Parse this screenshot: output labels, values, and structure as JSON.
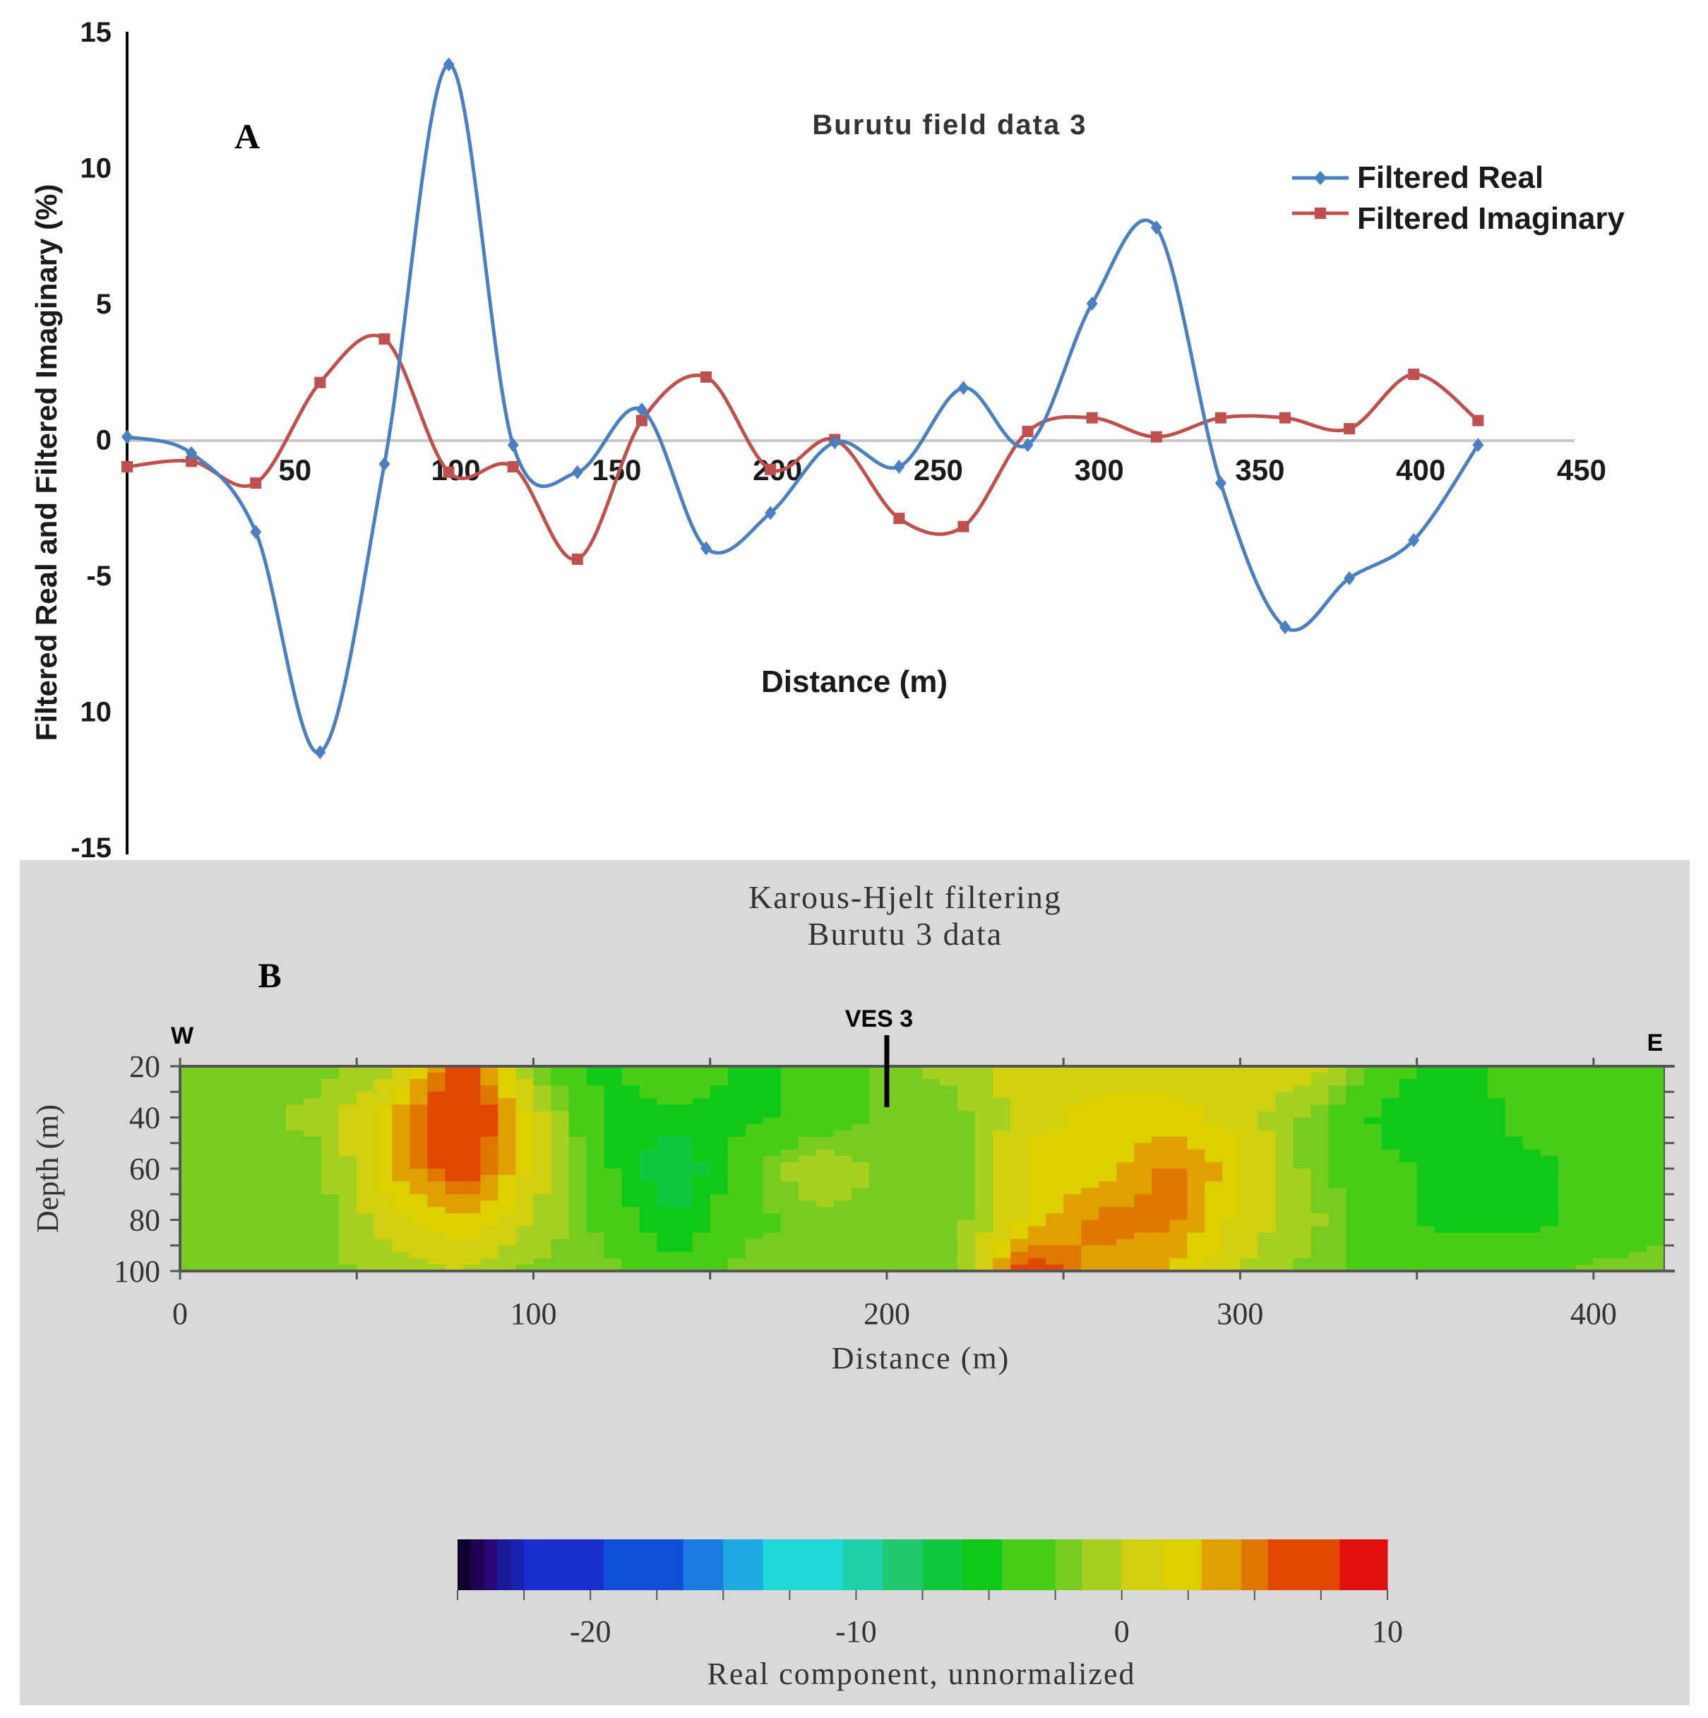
{
  "chart_data": [
    {
      "type": "line",
      "panel_label": "A",
      "title": "Burutu field data 3",
      "xlabel": "Distance (m)",
      "ylabel": "Filtered Real and Filtered Imaginary (%)",
      "xlim": [
        0,
        450
      ],
      "ylim": [
        -15,
        15
      ],
      "x_ticks": [
        "50",
        "100",
        "150",
        "200",
        "250",
        "300",
        "350",
        "400",
        "450"
      ],
      "y_ticks": [
        "15",
        "10",
        "5",
        "0",
        "-5",
        "10",
        "-15"
      ],
      "x": [
        0,
        20,
        40,
        60,
        80,
        100,
        120,
        140,
        160,
        180,
        200,
        220,
        240,
        260,
        280,
        300,
        320,
        340,
        360,
        380,
        400,
        420
      ],
      "series": [
        {
          "name": "Filtered Real",
          "color": "#4a7fc1",
          "marker": "diamond",
          "values": [
            0.1,
            -0.5,
            -3.4,
            -11.5,
            -0.9,
            13.8,
            -0.2,
            -1.2,
            1.1,
            -4.0,
            -2.7,
            -0.1,
            -1.0,
            1.9,
            -0.2,
            5.0,
            7.8,
            -1.6,
            -6.9,
            -5.1,
            -3.7,
            -0.2
          ]
        },
        {
          "name": "Filtered Imaginary",
          "color": "#c0504d",
          "marker": "square",
          "values": [
            -1.0,
            -0.8,
            -1.6,
            2.1,
            3.7,
            -1.2,
            -1.0,
            -4.4,
            0.7,
            2.3,
            -1.1,
            0.0,
            -2.9,
            -3.2,
            0.3,
            0.8,
            0.1,
            0.8,
            0.8,
            0.4,
            2.4,
            0.7
          ]
        }
      ]
    },
    {
      "type": "heatmap",
      "panel_label": "B",
      "title": "Karous-Hjelt filtering",
      "subtitle": "Burutu 3 data",
      "xlabel": "Distance (m)",
      "ylabel": "Depth (m)",
      "xlim": [
        0,
        420
      ],
      "ylim": [
        20,
        100
      ],
      "x_ticks": [
        "0",
        "100",
        "200",
        "300",
        "400"
      ],
      "y_ticks": [
        "20",
        "40",
        "60",
        "80",
        "100"
      ],
      "annotations": {
        "west": "W",
        "east": "E",
        "station": "VES 3",
        "station_x": 200
      },
      "grid_x": [
        0,
        20,
        40,
        60,
        80,
        100,
        120,
        140,
        160,
        180,
        200,
        220,
        240,
        260,
        280,
        300,
        320,
        340,
        360,
        380,
        400,
        420
      ],
      "grid_depth": [
        20,
        40,
        60,
        80,
        100
      ],
      "values": [
        [
          -2,
          -2,
          -2,
          -1,
          7,
          -2,
          -5,
          -3,
          -5,
          -4,
          -2,
          -1,
          1,
          1,
          1,
          1,
          1,
          -3,
          -6,
          -3,
          -3,
          -3
        ],
        [
          -2,
          -2,
          -1,
          3,
          9,
          1,
          -5,
          -5,
          -5,
          -4,
          -2,
          -2,
          1,
          2,
          2,
          1,
          -2,
          -5,
          -6,
          -4,
          -4,
          -3
        ],
        [
          -2,
          -2,
          -2,
          3,
          7,
          1,
          -4,
          -8,
          -3,
          0,
          -2,
          -2,
          2,
          2,
          5,
          2,
          -2,
          -4,
          -5,
          -5,
          -4,
          -3
        ],
        [
          -2,
          -2,
          -2,
          1,
          3,
          0,
          -3,
          -6,
          -3,
          -2,
          -2,
          -2,
          2,
          5,
          5,
          1,
          -1,
          -4,
          -5,
          -5,
          -4,
          -3
        ],
        [
          -2,
          -2,
          -2,
          -1,
          0,
          -2,
          -2,
          -4,
          -2,
          -2,
          -2,
          -2,
          7,
          4,
          3,
          0,
          -2,
          -3,
          -3,
          -3,
          -2,
          -2
        ]
      ],
      "colorbar": {
        "label": "Real component, unnormalized",
        "min": -25,
        "max": 10,
        "ticks": [
          "-20",
          "-10",
          "0",
          "10"
        ],
        "tick_values": [
          -20,
          -10,
          0,
          10
        ],
        "levels": [
          {
            "to": -24.5,
            "color": "#100030"
          },
          {
            "to": -24,
            "color": "#220050"
          },
          {
            "to": -23.5,
            "color": "#2a0a78"
          },
          {
            "to": -23,
            "color": "#1a1a9a"
          },
          {
            "to": -22.5,
            "color": "#1a20b0"
          },
          {
            "to": -19.5,
            "color": "#1a2ed0"
          },
          {
            "to": -16.5,
            "color": "#1050d8"
          },
          {
            "to": -15,
            "color": "#1a7ae0"
          },
          {
            "to": -13.5,
            "color": "#20a8e0"
          },
          {
            "to": -10.5,
            "color": "#20d8d8"
          },
          {
            "to": -9,
            "color": "#20d0a8"
          },
          {
            "to": -7.5,
            "color": "#20c870"
          },
          {
            "to": -6,
            "color": "#10c840"
          },
          {
            "to": -4.5,
            "color": "#10c818"
          },
          {
            "to": -2.5,
            "color": "#48cc18"
          },
          {
            "to": -1.5,
            "color": "#78cc20"
          },
          {
            "to": 0,
            "color": "#a8d020"
          },
          {
            "to": 1.5,
            "color": "#d0d010"
          },
          {
            "to": 3,
            "color": "#dcd000"
          },
          {
            "to": 4.5,
            "color": "#e0a000"
          },
          {
            "to": 5.5,
            "color": "#e07800"
          },
          {
            "to": 8.2,
            "color": "#e04800"
          },
          {
            "to": 10,
            "color": "#e01010"
          }
        ]
      }
    }
  ]
}
